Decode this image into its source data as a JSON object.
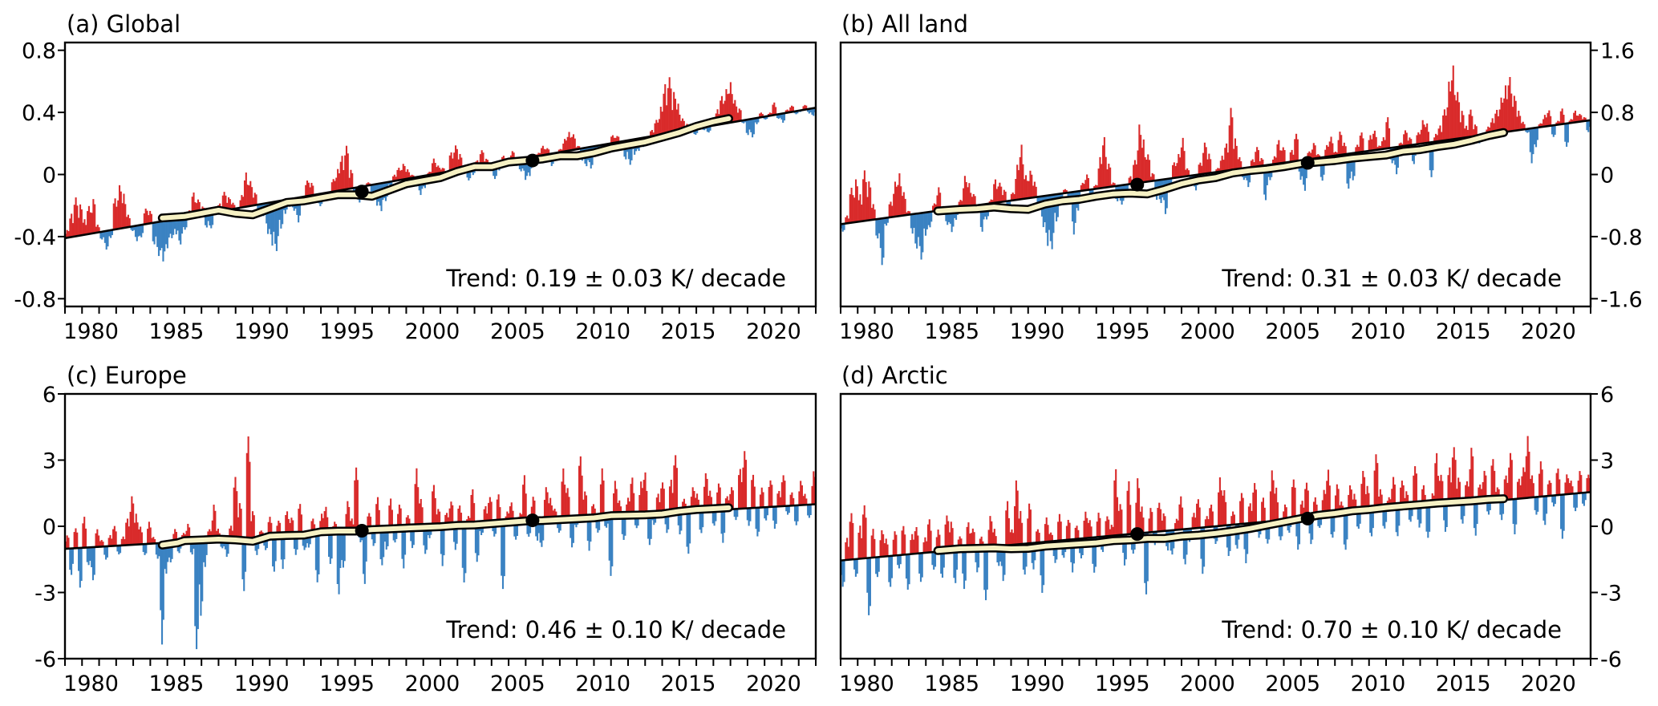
{
  "colors": {
    "above": "#d92b2b",
    "below": "#3a82c2",
    "smooth_fill": "#f6f1c4",
    "line": "#000000"
  },
  "chart_data": [
    {
      "type": "bar",
      "id": "a",
      "title": "(a) Global",
      "trend_label": "Trend: 0.19 ± 0.03 K/ decade",
      "xlabel": "",
      "ylabel": "",
      "xlim": [
        1978,
        2022
      ],
      "ylim": [
        -0.85,
        0.85
      ],
      "yaxis_side": "left",
      "yticks": [
        0.8,
        0.4,
        0,
        -0.4,
        -0.8
      ],
      "ytick_labels": [
        "0.8",
        "0.4",
        "0",
        "-0.4",
        "-0.8"
      ],
      "xticks": [
        1980,
        1985,
        1990,
        1995,
        2000,
        2005,
        2010,
        2015,
        2020
      ],
      "xtick_labels": [
        "1980",
        "1985",
        "1990",
        "1995",
        "2000",
        "2005",
        "2010",
        "2015",
        "2020"
      ],
      "trend": {
        "x": [
          1978,
          2022
        ],
        "y": [
          -0.41,
          0.43
        ]
      },
      "markers": [
        {
          "x": 1995.4,
          "y": -0.11
        },
        {
          "x": 2005.4,
          "y": 0.09
        }
      ],
      "smooth": {
        "x": [
          1983.7,
          1985,
          1986,
          1987,
          1988,
          1989,
          1990,
          1991,
          1992,
          1993,
          1994,
          1995,
          1996,
          1997,
          1998,
          1999,
          2000,
          2001,
          2002,
          2003,
          2004,
          2005,
          2006,
          2007,
          2008,
          2009,
          2010,
          2011,
          2012,
          2013,
          2014,
          2015,
          2016,
          2016.9
        ],
        "y": [
          -0.28,
          -0.27,
          -0.25,
          -0.23,
          -0.25,
          -0.26,
          -0.22,
          -0.18,
          -0.17,
          -0.15,
          -0.13,
          -0.13,
          -0.14,
          -0.1,
          -0.06,
          -0.04,
          -0.02,
          0.02,
          0.05,
          0.05,
          0.08,
          0.09,
          0.1,
          0.12,
          0.12,
          0.14,
          0.17,
          0.19,
          0.21,
          0.24,
          0.27,
          0.31,
          0.34,
          0.36
        ]
      },
      "anomalies_quarterly_from_trend": [
        0.05,
        0.15,
        0.25,
        0.2,
        0.1,
        0.18,
        0.22,
        0.05,
        -0.05,
        -0.12,
        -0.05,
        0.2,
        0.28,
        0.22,
        0.08,
        -0.03,
        -0.1,
        -0.08,
        0.1,
        0.08,
        -0.14,
        -0.22,
        -0.26,
        -0.18,
        -0.12,
        -0.1,
        -0.17,
        -0.08,
        0.04,
        0.15,
        0.1,
        0.05,
        -0.09,
        -0.1,
        -0.02,
        0.05,
        0.12,
        0.08,
        0.04,
        -0.04,
        0.08,
        0.22,
        0.16,
        0.08,
        -0.05,
        -0.08,
        -0.2,
        -0.28,
        -0.32,
        -0.18,
        -0.09,
        -0.05,
        -0.08,
        -0.16,
        -0.02,
        0.1,
        0.08,
        -0.05,
        -0.08,
        -0.05,
        -0.02,
        0.08,
        0.14,
        0.22,
        0.28,
        0.12,
        -0.04,
        -0.1,
        -0.02,
        0.02,
        -0.06,
        -0.14,
        -0.18,
        -0.12,
        -0.03,
        0.04,
        0.08,
        0.1,
        0.06,
        0.02,
        -0.06,
        -0.12,
        -0.08,
        0.02,
        0.1,
        0.05,
        0.03,
        -0.04,
        0.12,
        0.16,
        0.1,
        -0.02,
        -0.08,
        -0.05,
        0.04,
        0.1,
        0.04,
        -0.02,
        -0.1,
        -0.05,
        0.04,
        0.02,
        0.06,
        -0.04,
        -0.08,
        -0.14,
        -0.12,
        -0.04,
        0.02,
        0.06,
        0.04,
        -0.08,
        -0.04,
        0.02,
        0.08,
        0.12,
        0.1,
        0.02,
        -0.08,
        -0.12,
        -0.14,
        -0.06,
        -0.04,
        -0.06,
        -0.02,
        0.05,
        0.04,
        -0.05,
        -0.12,
        -0.16,
        -0.1,
        -0.08,
        -0.06,
        -0.02,
        0.04,
        0.1,
        0.18,
        0.32,
        0.36,
        0.26,
        0.18,
        0.08,
        0.04,
        0.0,
        -0.04,
        0.02,
        -0.02,
        -0.04,
        0.02,
        0.1,
        0.18,
        0.22,
        0.26,
        0.14,
        0.08,
        -0.02,
        -0.1,
        -0.12,
        -0.04,
        0.03,
        -0.02,
        0.02,
        0.08,
        -0.03,
        -0.06,
        0.02,
        0.04,
        -0.02,
        -0.01,
        0.03,
        -0.03,
        -0.05
      ]
    },
    {
      "type": "bar",
      "id": "b",
      "title": "(b) All land",
      "trend_label": "Trend: 0.31 ± 0.03 K/ decade",
      "xlabel": "",
      "ylabel": "",
      "xlim": [
        1978,
        2022
      ],
      "ylim": [
        -1.7,
        1.7
      ],
      "yaxis_side": "right",
      "yticks": [
        1.6,
        0.8,
        0,
        -0.8,
        -1.6
      ],
      "ytick_labels": [
        "1.6",
        "0.8",
        "0",
        "-0.8",
        "-1.6"
      ],
      "xticks": [
        1980,
        1985,
        1990,
        1995,
        2000,
        2005,
        2010,
        2015,
        2020
      ],
      "xtick_labels": [
        "1980",
        "1985",
        "1990",
        "1995",
        "2000",
        "2005",
        "2010",
        "2015",
        "2020"
      ],
      "trend": {
        "x": [
          1978,
          2022
        ],
        "y": [
          -0.64,
          0.7
        ]
      },
      "markers": [
        {
          "x": 1995.4,
          "y": -0.13
        },
        {
          "x": 2005.4,
          "y": 0.15
        }
      ],
      "smooth": {
        "x": [
          1983.7,
          1985,
          1986,
          1987,
          1988,
          1989,
          1990,
          1991,
          1992,
          1993,
          1994,
          1995,
          1996,
          1997,
          1998,
          1999,
          2000,
          2001,
          2002,
          2003,
          2004,
          2005,
          2006,
          2007,
          2008,
          2009,
          2010,
          2011,
          2012,
          2013,
          2014,
          2015,
          2016,
          2016.9
        ],
        "y": [
          -0.47,
          -0.45,
          -0.44,
          -0.42,
          -0.44,
          -0.45,
          -0.38,
          -0.34,
          -0.32,
          -0.28,
          -0.25,
          -0.24,
          -0.25,
          -0.19,
          -0.12,
          -0.07,
          -0.04,
          0.02,
          0.05,
          0.07,
          0.1,
          0.14,
          0.16,
          0.18,
          0.21,
          0.23,
          0.25,
          0.3,
          0.32,
          0.36,
          0.39,
          0.44,
          0.5,
          0.54
        ]
      },
      "anomalies_quarterly_from_trend": [
        -0.1,
        0.1,
        0.45,
        0.55,
        0.35,
        0.65,
        0.5,
        0.2,
        -0.25,
        -0.6,
        -0.1,
        0.2,
        0.45,
        0.55,
        0.3,
        0.05,
        -0.25,
        -0.45,
        -0.6,
        -0.3,
        -0.2,
        0.1,
        0.3,
        0.05,
        -0.2,
        -0.3,
        -0.15,
        0.1,
        0.4,
        0.3,
        0.15,
        -0.1,
        -0.35,
        -0.2,
        0.05,
        0.3,
        0.25,
        0.15,
        -0.15,
        0.1,
        0.45,
        0.7,
        0.3,
        0.35,
        0.2,
        -0.1,
        -0.4,
        -0.65,
        -0.7,
        -0.35,
        -0.15,
        0.05,
        -0.1,
        -0.55,
        -0.25,
        0.1,
        0.2,
        -0.1,
        0.05,
        0.4,
        0.65,
        0.3,
        0.05,
        -0.2,
        -0.25,
        -0.1,
        0.1,
        0.3,
        0.75,
        0.55,
        0.35,
        0.1,
        -0.25,
        -0.3,
        -0.45,
        -0.1,
        0.2,
        0.3,
        0.5,
        0.1,
        -0.05,
        -0.2,
        0.15,
        0.4,
        0.25,
        -0.1,
        0.05,
        0.2,
        0.35,
        0.8,
        0.4,
        0.15,
        -0.15,
        -0.25,
        0.1,
        0.25,
        0.1,
        -0.45,
        -0.2,
        0.1,
        0.3,
        0.2,
        -0.05,
        0.15,
        0.35,
        -0.25,
        -0.4,
        0.1,
        0.2,
        0.05,
        -0.3,
        0.15,
        0.25,
        0.05,
        0.3,
        0.15,
        -0.45,
        -0.35,
        0.1,
        0.25,
        -0.1,
        0.2,
        0.25,
        0.05,
        0.15,
        0.4,
        -0.2,
        -0.35,
        0.05,
        0.2,
        0.1,
        -0.25,
        0.15,
        0.3,
        0.25,
        -0.45,
        0.1,
        0.2,
        0.4,
        0.75,
        0.95,
        0.6,
        0.35,
        0.15,
        0.35,
        0.15,
        -0.1,
        -0.05,
        0.1,
        0.2,
        0.3,
        0.45,
        0.6,
        0.7,
        0.45,
        0.25,
        0.1,
        -0.05,
        -0.45,
        -0.25,
        0.05,
        0.15,
        0.2,
        -0.15,
        0.05,
        0.2,
        -0.3,
        0.05,
        0.15,
        0.1,
        0.05,
        -0.15
      ]
    },
    {
      "type": "bar",
      "id": "c",
      "title": "(c) Europe",
      "trend_label": "Trend: 0.46 ± 0.10 K/ decade",
      "xlabel": "",
      "ylabel": "",
      "xlim": [
        1978,
        2022
      ],
      "ylim": [
        -6,
        6
      ],
      "yaxis_side": "left",
      "yticks": [
        6,
        3,
        0,
        -3,
        -6
      ],
      "ytick_labels": [
        "6",
        "3",
        "0",
        "-3",
        "-6"
      ],
      "xticks": [
        1980,
        1985,
        1990,
        1995,
        2000,
        2005,
        2010,
        2015,
        2020
      ],
      "xtick_labels": [
        "1980",
        "1985",
        "1990",
        "1995",
        "2000",
        "2005",
        "2010",
        "2015",
        "2020"
      ],
      "trend": {
        "x": [
          1978,
          2022
        ],
        "y": [
          -1.02,
          1.0
        ]
      },
      "markers": [
        {
          "x": 1995.4,
          "y": -0.2
        },
        {
          "x": 2005.4,
          "y": 0.27
        }
      ],
      "smooth": {
        "x": [
          1983.7,
          1984.6,
          1985,
          1986,
          1987,
          1988,
          1989,
          1990,
          1991,
          1992,
          1993,
          1994,
          1995,
          1996,
          1997,
          1998,
          1999,
          2000,
          2001,
          2002,
          2003,
          2004,
          2005,
          2006,
          2007,
          2008,
          2009,
          2010,
          2011,
          2012,
          2013,
          2014,
          2015,
          2016,
          2016.9
        ],
        "y": [
          -0.85,
          -0.75,
          -0.65,
          -0.62,
          -0.58,
          -0.62,
          -0.68,
          -0.45,
          -0.42,
          -0.4,
          -0.25,
          -0.22,
          -0.22,
          -0.15,
          -0.12,
          -0.08,
          -0.05,
          -0.02,
          0.04,
          0.06,
          0.12,
          0.18,
          0.24,
          0.26,
          0.3,
          0.34,
          0.38,
          0.48,
          0.5,
          0.52,
          0.56,
          0.68,
          0.76,
          0.8,
          0.84
        ]
      },
      "anomalies_quarterly_from_trend": [
        0.6,
        -1.2,
        0.9,
        -1.8,
        1.4,
        -0.8,
        -1.5,
        0.8,
        0.3,
        -0.6,
        0.5,
        0.9,
        -0.4,
        0.4,
        1.2,
        2.2,
        1.4,
        0.8,
        -0.5,
        1.0,
        0.3,
        -0.7,
        -4.6,
        -1.4,
        -0.9,
        0.6,
        -0.5,
        0.4,
        0.8,
        -0.6,
        -4.9,
        -3.4,
        -1.2,
        0.5,
        1.6,
        0.5,
        -0.4,
        -0.8,
        0.6,
        2.8,
        1.6,
        -2.4,
        4.6,
        1.2,
        -0.8,
        0.3,
        -0.6,
        0.9,
        -1.6,
        0.7,
        -1.5,
        1.1,
        0.8,
        -0.9,
        1.4,
        -0.7,
        -0.6,
        0.7,
        -2.2,
        0.9,
        1.2,
        -1.4,
        0.5,
        -2.8,
        -1.6,
        1.4,
        0.6,
        2.9,
        -0.5,
        -2.4,
        0.8,
        -0.7,
        1.5,
        -1.6,
        -0.9,
        1.4,
        -0.6,
        1.1,
        -1.8,
        0.6,
        -0.9,
        2.7,
        1.3,
        -1.2,
        -0.5,
        1.9,
        0.8,
        -1.8,
        0.6,
        1.1,
        -1.1,
        0.9,
        -2.6,
        0.4,
        1.6,
        -1.7,
        -0.5,
        0.8,
        1.2,
        -0.6,
        1.3,
        -3.0,
        0.5,
        0.9,
        -0.8,
        0.4,
        2.1,
        -0.7,
        1.1,
        -0.9,
        -1.2,
        1.5,
        1.0,
        0.5,
        -0.6,
        2.3,
        1.4,
        -1.3,
        -0.4,
        2.8,
        1.2,
        -1.5,
        0.6,
        -0.7,
        2.2,
        -0.5,
        -2.7,
        1.6,
        0.7,
        -1.1,
        0.8,
        1.7,
        -0.6,
        1.5,
        1.9,
        -1.4,
        -0.5,
        0.9,
        1.4,
        -0.9,
        1.5,
        2.6,
        -1.0,
        0.6,
        -1.9,
        1.1,
        0.8,
        -1.0,
        1.7,
        0.9,
        -0.7,
        1.2,
        -1.5,
        0.6,
        1.0,
        -0.5,
        1.8,
        2.6,
        -0.8,
        1.5,
        -1.3,
        0.9,
        -0.6,
        1.2,
        -1.0,
        0.7,
        1.4,
        -0.4,
        0.6,
        -0.9,
        1.1,
        0.5,
        -0.6,
        1.5
      ]
    },
    {
      "type": "bar",
      "id": "d",
      "title": "(d) Arctic",
      "trend_label": "Trend: 0.70 ± 0.10 K/ decade",
      "xlabel": "",
      "ylabel": "",
      "xlim": [
        1978,
        2022
      ],
      "ylim": [
        -6,
        6
      ],
      "yaxis_side": "right",
      "yticks": [
        6,
        3,
        0,
        -3,
        -6
      ],
      "ytick_labels": [
        "6",
        "3",
        "0",
        "-3",
        "-6"
      ],
      "xticks": [
        1980,
        1985,
        1990,
        1995,
        2000,
        2005,
        2010,
        2015,
        2020
      ],
      "xtick_labels": [
        "1980",
        "1985",
        "1990",
        "1995",
        "2000",
        "2005",
        "2010",
        "2015",
        "2020"
      ],
      "trend": {
        "x": [
          1978,
          2022
        ],
        "y": [
          -1.55,
          1.55
        ]
      },
      "markers": [
        {
          "x": 1995.4,
          "y": -0.35
        },
        {
          "x": 2005.4,
          "y": 0.35
        }
      ],
      "smooth": {
        "x": [
          1983.7,
          1985,
          1986,
          1987,
          1988,
          1989,
          1990,
          1991,
          1992,
          1993,
          1994,
          1995,
          1996,
          1997,
          1998,
          1999,
          2000,
          2001,
          2002,
          2003,
          2004,
          2005,
          2006,
          2007,
          2008,
          2009,
          2010,
          2011,
          2012,
          2013,
          2014,
          2015,
          2016,
          2016.9
        ],
        "y": [
          -1.1,
          -1.02,
          -1.0,
          -0.98,
          -1.02,
          -1.0,
          -0.9,
          -0.85,
          -0.8,
          -0.75,
          -0.65,
          -0.62,
          -0.55,
          -0.55,
          -0.45,
          -0.4,
          -0.32,
          -0.22,
          -0.1,
          0.05,
          0.2,
          0.35,
          0.5,
          0.58,
          0.7,
          0.76,
          0.85,
          0.92,
          0.98,
          1.05,
          1.1,
          1.15,
          1.22,
          1.25
        ]
      },
      "anomalies_quarterly_from_trend": [
        -1.2,
        1.0,
        2.1,
        -0.8,
        1.5,
        2.4,
        -2.6,
        1.3,
        -0.9,
        1.2,
        0.8,
        -1.4,
        1.1,
        -0.6,
        1.3,
        -1.6,
        0.9,
        1.2,
        -1.3,
        0.7,
        1.5,
        -0.8,
        1.0,
        -1.2,
        1.6,
        1.3,
        -1.5,
        0.6,
        -1.8,
        1.2,
        0.9,
        -1.1,
        0.5,
        -2.4,
        1.4,
        0.8,
        -0.9,
        -1.6,
        2.0,
        0.7,
        2.9,
        1.5,
        -1.4,
        1.8,
        -1.2,
        0.6,
        -2.3,
        1.1,
        0.4,
        -1.0,
        1.2,
        -0.8,
        0.9,
        -1.5,
        0.6,
        -0.9,
        1.2,
        0.8,
        -1.6,
        1.1,
        -0.7,
        0.9,
        0.5,
        3.0,
        1.4,
        -1.4,
        2.4,
        -0.9,
        2.5,
        1.2,
        -2.8,
        1.1,
        -0.6,
        1.3,
        0.8,
        -0.9,
        -1.1,
        0.5,
        1.5,
        -1.6,
        -0.6,
        0.7,
        1.3,
        -2.1,
        0.5,
        1.0,
        -0.8,
        2.2,
        1.6,
        -1.4,
        0.6,
        -1.1,
        1.4,
        -1.8,
        0.9,
        1.8,
        -0.7,
        1.1,
        -1.0,
        2.3,
        1.5,
        -0.9,
        0.7,
        -0.6,
        1.8,
        -1.4,
        0.8,
        1.6,
        -1.2,
        0.9,
        -0.5,
        1.2,
        2.1,
        -1.0,
        1.4,
        0.6,
        -1.6,
        1.3,
        0.9,
        -0.7,
        1.9,
        1.2,
        -1.1,
        2.6,
        1.0,
        -0.8,
        0.6,
        1.5,
        -1.2,
        1.3,
        0.8,
        -0.6,
        1.9,
        -0.9,
        1.0,
        -1.4,
        0.6,
        2.4,
        1.4,
        -1.2,
        1.7,
        2.6,
        1.2,
        -0.9,
        1.0,
        2.5,
        -1.5,
        0.8,
        1.4,
        -0.6,
        1.9,
        0.6,
        -0.9,
        1.1,
        2.1,
        -1.6,
        0.9,
        1.4,
        2.8,
        1.0,
        -0.8,
        1.6,
        -1.3,
        0.7,
        -0.5,
        1.2,
        -2.0,
        0.9,
        0.6,
        -0.8,
        1.0,
        -0.6,
        0.8
      ]
    }
  ]
}
